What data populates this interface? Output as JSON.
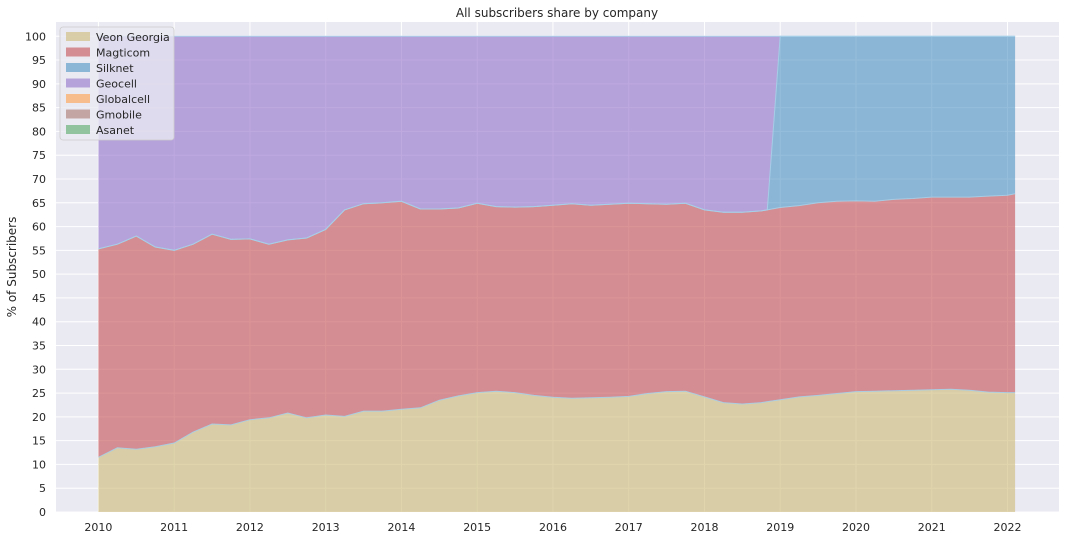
{
  "chart_data": {
    "type": "area",
    "stacked": true,
    "title": "All subscribers share by company",
    "xlabel": "",
    "ylabel": "% of Subscribers",
    "xlim": [
      2009.44,
      2022.68
    ],
    "ylim": [
      0,
      103
    ],
    "xticks": [
      "2010",
      "2011",
      "2012",
      "2013",
      "2014",
      "2015",
      "2016",
      "2017",
      "2018",
      "2019",
      "2020",
      "2021",
      "2022"
    ],
    "yticks": [
      "0",
      "5",
      "10",
      "15",
      "20",
      "25",
      "30",
      "35",
      "40",
      "45",
      "50",
      "55",
      "60",
      "65",
      "70",
      "75",
      "80",
      "85",
      "90",
      "95",
      "100"
    ],
    "grid": true,
    "legend_position": "top-left",
    "x": [
      2010.0,
      2010.25,
      2010.5,
      2010.75,
      2011.0,
      2011.25,
      2011.5,
      2011.75,
      2012.0,
      2012.25,
      2012.5,
      2012.75,
      2013.0,
      2013.25,
      2013.5,
      2013.75,
      2014.0,
      2014.25,
      2014.5,
      2014.75,
      2015.0,
      2015.25,
      2015.5,
      2015.75,
      2016.0,
      2016.25,
      2016.5,
      2016.75,
      2017.0,
      2017.25,
      2017.5,
      2017.75,
      2018.0,
      2018.25,
      2018.5,
      2018.75,
      2018.83,
      2019.0,
      2019.25,
      2019.5,
      2019.75,
      2020.0,
      2020.25,
      2020.5,
      2020.75,
      2021.0,
      2021.25,
      2021.5,
      2021.75,
      2022.0,
      2022.1
    ],
    "series": [
      {
        "name": "Veon Georgia",
        "color": "#ccb974",
        "values": [
          11.5,
          13.5,
          13.2,
          13.7,
          14.5,
          16.8,
          18.5,
          18.3,
          19.4,
          19.8,
          20.8,
          19.8,
          20.4,
          20.1,
          21.2,
          21.2,
          21.6,
          21.9,
          23.5,
          24.4,
          25.1,
          25.4,
          25.1,
          24.5,
          24.1,
          23.9,
          24.0,
          24.1,
          24.3,
          24.9,
          25.3,
          25.4,
          24.2,
          23.0,
          22.7,
          23.0,
          23.2,
          23.6,
          24.2,
          24.5,
          24.9,
          25.3,
          25.4,
          25.5,
          25.6,
          25.7,
          25.8,
          25.6,
          25.2,
          25.1,
          25.1
        ]
      },
      {
        "name": "Magticom",
        "color": "#c44e52",
        "values": [
          43.8,
          42.8,
          44.8,
          42.0,
          40.5,
          39.5,
          39.9,
          39.0,
          38.0,
          36.5,
          36.4,
          37.8,
          39.0,
          43.4,
          43.6,
          43.8,
          43.7,
          41.8,
          40.2,
          39.5,
          39.8,
          38.8,
          39.0,
          39.7,
          40.4,
          40.9,
          40.5,
          40.6,
          40.6,
          39.9,
          39.4,
          39.5,
          39.3,
          40.0,
          40.3,
          40.3,
          40.3,
          40.4,
          40.2,
          40.5,
          40.4,
          40.1,
          39.9,
          40.2,
          40.3,
          40.5,
          40.4,
          40.6,
          41.2,
          41.5,
          41.8
        ]
      },
      {
        "name": "Silknet",
        "color": "#4c92c3",
        "values": [
          0,
          0,
          0,
          0,
          0,
          0,
          0,
          0,
          0,
          0,
          0,
          0,
          0,
          0,
          0,
          0,
          0,
          0,
          0,
          0,
          0,
          0,
          0,
          0,
          0,
          0,
          0,
          0,
          0,
          0,
          0,
          0,
          0,
          0,
          0,
          0,
          0,
          36.0,
          35.6,
          35.0,
          34.7,
          34.6,
          34.7,
          34.3,
          34.1,
          33.8,
          33.8,
          33.8,
          33.6,
          33.4,
          33.1
        ]
      },
      {
        "name": "Geocell",
        "color": "#9372c9",
        "values": [
          44.7,
          43.7,
          42.0,
          44.3,
          45.0,
          43.7,
          41.6,
          42.7,
          42.6,
          43.7,
          42.8,
          42.4,
          40.6,
          36.5,
          35.2,
          35.0,
          34.7,
          36.3,
          36.3,
          36.1,
          35.1,
          35.8,
          35.9,
          35.8,
          35.5,
          35.2,
          35.5,
          35.3,
          35.1,
          35.2,
          35.3,
          35.1,
          36.5,
          37.0,
          37.0,
          36.7,
          36.5,
          0,
          0,
          0,
          0,
          0,
          0,
          0,
          0,
          0,
          0,
          0,
          0,
          0,
          0
        ]
      },
      {
        "name": "Globalcell",
        "color": "#ff9f4a",
        "values": [
          0,
          0,
          0,
          0,
          0,
          0,
          0,
          0,
          0,
          0,
          0,
          0,
          0,
          0,
          0,
          0,
          0,
          0,
          0,
          0,
          0,
          0,
          0,
          0,
          0,
          0,
          0,
          0,
          0,
          0,
          0,
          0,
          0,
          0,
          0,
          0,
          0,
          0,
          0,
          0,
          0,
          0,
          0,
          0,
          0,
          0,
          0,
          0,
          0,
          0,
          0
        ]
      },
      {
        "name": "Gmobile",
        "color": "#a8786e",
        "values": [
          0,
          0,
          0,
          0,
          0,
          0,
          0,
          0,
          0,
          0,
          0,
          0,
          0,
          0,
          0,
          0,
          0,
          0,
          0,
          0,
          0,
          0,
          0,
          0,
          0,
          0,
          0,
          0,
          0,
          0,
          0,
          0,
          0,
          0,
          0,
          0,
          0,
          0,
          0,
          0,
          0,
          0,
          0,
          0,
          0,
          0,
          0,
          0,
          0,
          0,
          0
        ]
      },
      {
        "name": "Asanet",
        "color": "#55a868",
        "values": [
          0,
          0,
          0,
          0,
          0,
          0,
          0,
          0,
          0,
          0,
          0,
          0,
          0,
          0,
          0,
          0,
          0,
          0,
          0,
          0,
          0,
          0,
          0,
          0,
          0,
          0,
          0,
          0,
          0,
          0,
          0,
          0,
          0,
          0,
          0,
          0,
          0,
          0,
          0,
          0,
          0,
          0,
          0,
          0,
          0,
          0,
          0,
          0,
          0,
          0,
          0
        ]
      }
    ]
  },
  "colors": {
    "plot_background": "#eaeaf2",
    "grid": "#ffffff",
    "boundary": "#a6cfe8"
  }
}
